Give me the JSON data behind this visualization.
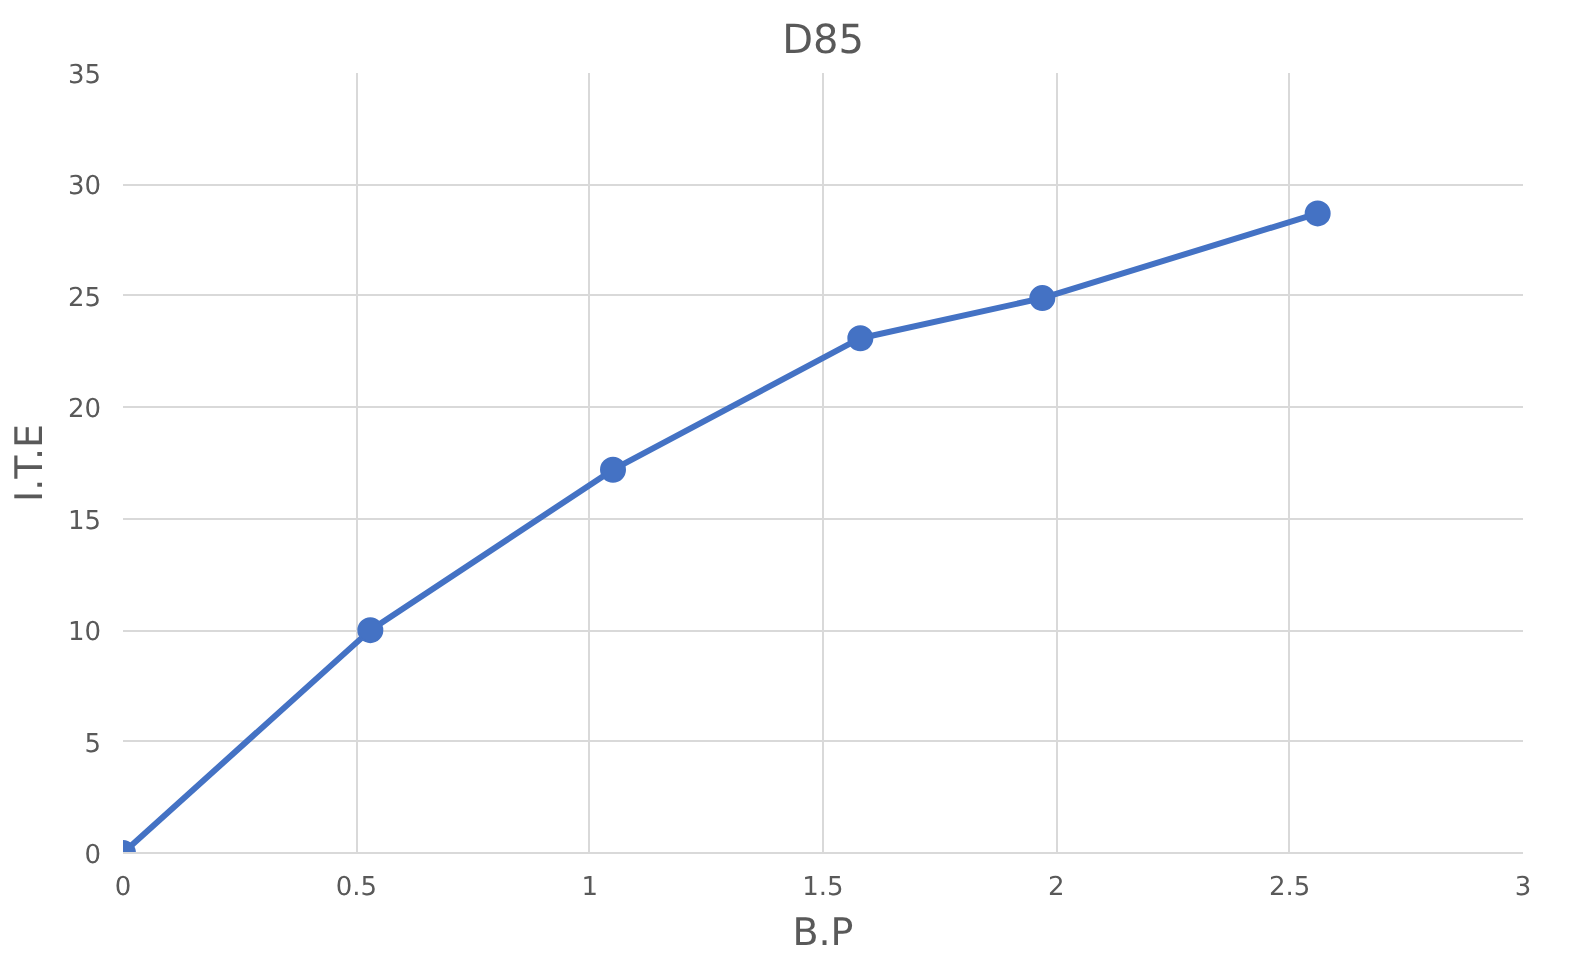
{
  "chart_data": {
    "type": "line",
    "title": "D85",
    "xlabel": "B.P",
    "ylabel": "I.T.E",
    "x": [
      0,
      0.53,
      1.05,
      1.58,
      1.97,
      2.56
    ],
    "series": [
      {
        "color": "#4472c4",
        "values": [
          0,
          10,
          17.2,
          23.1,
          24.9,
          28.7
        ]
      }
    ],
    "xlim": [
      0,
      3
    ],
    "xticks": [
      0,
      0.5,
      1,
      1.5,
      2,
      2.5,
      3
    ],
    "ylim": [
      0,
      35
    ],
    "yticks": [
      0,
      5,
      10,
      15,
      20,
      25,
      30,
      35
    ],
    "grid": true,
    "marker": "circle",
    "line_style": "solid"
  }
}
